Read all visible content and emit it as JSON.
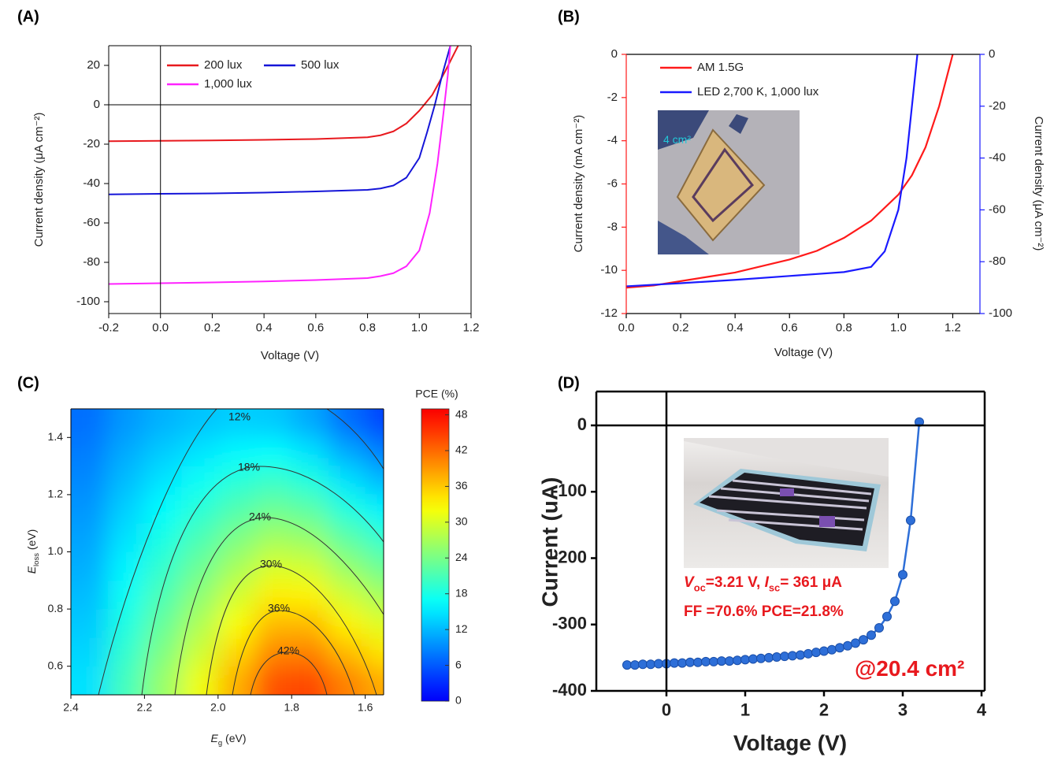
{
  "chart_data": [
    {
      "type": "line",
      "panel_label": "(A)",
      "xlabel": "Voltage (V)",
      "ylabel": "Current density (μA cm⁻²)",
      "xlim": [
        -0.2,
        1.2
      ],
      "ylim": [
        -106,
        30
      ],
      "xticks": [
        -0.2,
        {
          "value": 0,
          "label": "0.0"
        },
        0.2,
        0.4,
        0.6,
        0.8,
        {
          "value": 1,
          "label": "1.0"
        },
        1.2
      ],
      "yticks": [
        -100,
        -80,
        -60,
        -40,
        -20,
        0,
        20
      ],
      "zero_lines": true,
      "legend": "upper left",
      "series": [
        {
          "name": "200 lux",
          "color": "#e8191e",
          "x": [
            -0.2,
            0,
            0.2,
            0.4,
            0.6,
            0.8,
            0.85,
            0.9,
            0.95,
            1.0,
            1.05,
            1.1,
            1.15
          ],
          "values": [
            -18.5,
            -18.3,
            -18.1,
            -17.8,
            -17.4,
            -16.5,
            -15.5,
            -13.5,
            -9.5,
            -3,
            5,
            17,
            30
          ]
        },
        {
          "name": "500 lux",
          "color": "#1515d8",
          "x": [
            -0.2,
            0,
            0.2,
            0.4,
            0.6,
            0.8,
            0.85,
            0.9,
            0.95,
            1.0,
            1.03,
            1.06,
            1.09,
            1.12
          ],
          "values": [
            -45.5,
            -45.2,
            -45,
            -44.6,
            -44,
            -43.2,
            -42.5,
            -41,
            -37,
            -27,
            -14,
            0,
            16,
            30
          ]
        },
        {
          "name": "1,000 lux",
          "color": "#ff22ff",
          "x": [
            -0.2,
            0,
            0.2,
            0.4,
            0.6,
            0.8,
            0.85,
            0.9,
            0.95,
            1.0,
            1.04,
            1.07,
            1.09,
            1.11,
            1.12
          ],
          "values": [
            -91,
            -90.6,
            -90.2,
            -89.7,
            -89,
            -88,
            -87,
            -85.5,
            -82,
            -74,
            -55,
            -30,
            -8,
            15,
            30
          ]
        }
      ]
    },
    {
      "type": "line",
      "panel_label": "(B)",
      "xlabel": "Voltage (V)",
      "ylabel": "Current density (mA cm⁻²)",
      "y2label": "Current density (μA cm⁻²)",
      "inset_label": "4 cm²",
      "xlim": [
        0,
        1.3
      ],
      "ylim": [
        -12,
        0
      ],
      "y2lim": [
        -100,
        0
      ],
      "xticks": [
        {
          "value": 0,
          "label": "0.0"
        },
        0.2,
        0.4,
        0.6,
        0.8,
        {
          "value": 1,
          "label": "1.0"
        },
        1.2
      ],
      "yticks": [
        -12,
        -10,
        -8,
        -6,
        -4,
        -2,
        0
      ],
      "y2ticks": [
        -100,
        -80,
        -60,
        -40,
        -20,
        0
      ],
      "legend": "upper left",
      "series": [
        {
          "name": "AM 1.5G",
          "color": "#ff1a1a",
          "x": [
            0,
            0.1,
            0.2,
            0.3,
            0.4,
            0.5,
            0.6,
            0.7,
            0.8,
            0.9,
            1.0,
            1.05,
            1.1,
            1.15,
            1.2
          ],
          "values": [
            -10.8,
            -10.7,
            -10.5,
            -10.3,
            -10.1,
            -9.8,
            -9.5,
            -9.1,
            -8.5,
            -7.7,
            -6.5,
            -5.6,
            -4.3,
            -2.4,
            0
          ]
        },
        {
          "name": "LED 2,700 K, 1,000 lux",
          "color": "#1a1aff",
          "axis": "y2",
          "x": [
            0,
            0.2,
            0.4,
            0.6,
            0.8,
            0.9,
            0.95,
            1.0,
            1.03,
            1.05,
            1.07
          ],
          "values": [
            -89.5,
            -88.3,
            -87,
            -85.5,
            -84,
            -82,
            -76,
            -60,
            -40,
            -20,
            0
          ]
        }
      ]
    },
    {
      "type": "heatmap",
      "panel_label": "(C)",
      "xlabel": [
        "E",
        "g",
        " (eV)"
      ],
      "ylabel": [
        "E",
        "loss",
        " (eV)"
      ],
      "xlim": [
        2.4,
        1.55
      ],
      "ylim": [
        0.5,
        1.5
      ],
      "xticks": [
        2.4,
        2.2,
        {
          "value": 2,
          "label": "2.0"
        },
        1.8,
        1.6
      ],
      "yticks": [
        0.6,
        0.8,
        {
          "value": 1,
          "label": "1.0"
        },
        1.2,
        1.4
      ],
      "x_edges": [
        2.4,
        2.3,
        2.2,
        2.1,
        2.0,
        1.9,
        1.8,
        1.7,
        1.6,
        1.55
      ],
      "y_edges": [
        0.5,
        0.6,
        0.7,
        0.8,
        0.9,
        1.0,
        1.1,
        1.2,
        1.3,
        1.4,
        1.5
      ],
      "z": [
        [
          14.6,
          20.7,
          26.0,
          31.6,
          37.7,
          43.7,
          44.3,
          40.6,
          37.8
        ],
        [
          13.8,
          19.5,
          24.4,
          29.5,
          35.0,
          40.3,
          40.6,
          36.9,
          34.1
        ],
        [
          13.0,
          18.3,
          22.8,
          27.4,
          32.3,
          36.9,
          36.9,
          33.2,
          30.4
        ],
        [
          12.2,
          17.1,
          21.2,
          25.3,
          29.6,
          33.5,
          33.2,
          29.5,
          26.7
        ],
        [
          11.4,
          15.9,
          19.6,
          23.2,
          26.9,
          30.1,
          29.5,
          25.8,
          23.0
        ],
        [
          10.6,
          14.7,
          18.0,
          21.1,
          24.2,
          26.7,
          25.8,
          22.1,
          19.3
        ],
        [
          9.8,
          13.5,
          16.4,
          19.0,
          21.5,
          23.3,
          22.1,
          18.4,
          15.6
        ],
        [
          9.0,
          12.3,
          14.8,
          16.9,
          18.8,
          19.9,
          18.4,
          14.7,
          11.9
        ],
        [
          8.2,
          11.1,
          13.2,
          14.8,
          16.1,
          16.5,
          14.7,
          11.0,
          8.2
        ],
        [
          7.4,
          9.9,
          11.6,
          12.7,
          13.4,
          13.1,
          11.0,
          7.3,
          4.5
        ]
      ],
      "contour_levels": [
        12,
        18,
        24,
        30,
        36,
        42
      ],
      "contour_value_labels": [
        "12%",
        "18%",
        "24%",
        "30%",
        "36%",
        "42%"
      ],
      "colorbar_label": "PCE (%)",
      "colorbar_lim": [
        0,
        49
      ],
      "colorbar_ticks": [
        0,
        6,
        12,
        18,
        24,
        30,
        36,
        42,
        48
      ]
    },
    {
      "type": "line",
      "panel_label": "(D)",
      "xlabel": "Voltage (V)",
      "ylabel": "Current (uA)",
      "markers": true,
      "xlim": [
        -0.89,
        4.04
      ],
      "ylim": [
        -400,
        51
      ],
      "xticks": [
        0,
        1,
        2,
        3,
        4
      ],
      "yticks": [
        -400,
        -300,
        -200,
        -100,
        0
      ],
      "zero_lines": true,
      "annotations": [
        {
          "parts": [
            "V",
            "oc",
            "=3.21 V, ",
            "I",
            "sc",
            "= 361 μA"
          ]
        },
        {
          "text": "FF =70.6% PCE=21.8%"
        },
        {
          "text": "@20.4 cm²"
        }
      ],
      "series": [
        {
          "name": "Current",
          "color": "#2e6fd8",
          "x": [
            -0.5,
            -0.4,
            -0.3,
            -0.2,
            -0.1,
            0,
            0.1,
            0.2,
            0.3,
            0.4,
            0.5,
            0.6,
            0.7,
            0.8,
            0.9,
            1.0,
            1.1,
            1.2,
            1.3,
            1.4,
            1.5,
            1.6,
            1.7,
            1.8,
            1.9,
            2.0,
            2.1,
            2.2,
            2.3,
            2.4,
            2.5,
            2.6,
            2.7,
            2.8,
            2.9,
            3.0,
            3.1,
            3.21
          ],
          "values": [
            -361,
            -361,
            -360,
            -360,
            -359,
            -359,
            -358,
            -358,
            -357,
            -357,
            -356,
            -356,
            -355,
            -355,
            -354,
            -353,
            -352,
            -351,
            -350,
            -349,
            -348,
            -347,
            -346,
            -344,
            -342,
            -340,
            -338,
            -335,
            -332,
            -328,
            -323,
            -316,
            -305,
            -288,
            -265,
            -225,
            -143,
            5
          ]
        }
      ]
    }
  ]
}
